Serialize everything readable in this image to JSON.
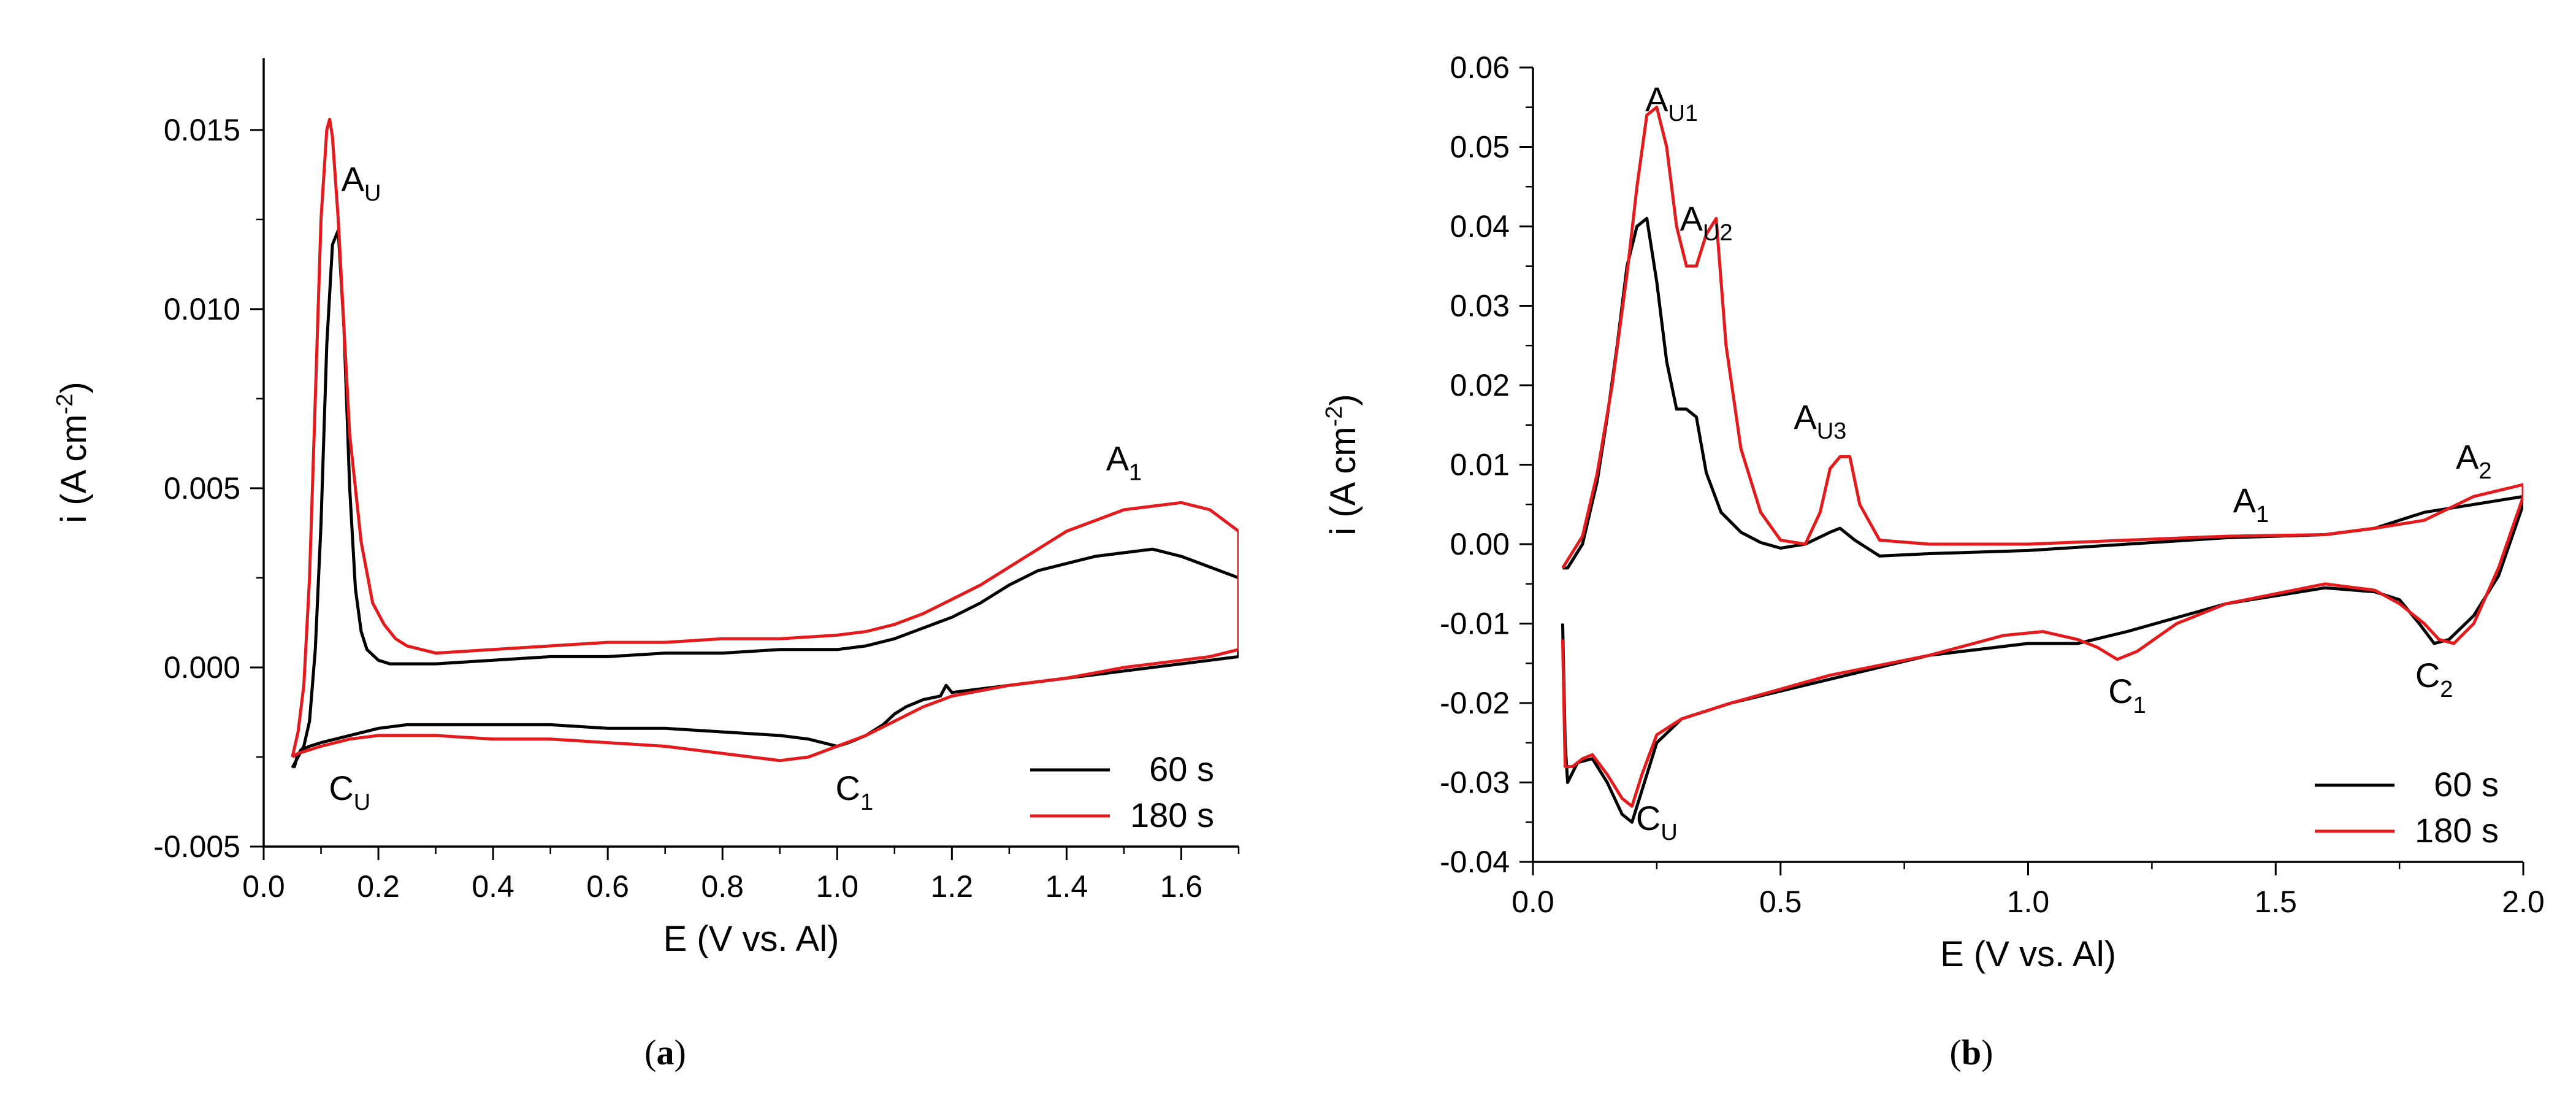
{
  "chart_data": [
    {
      "type": "line",
      "panel_label": "a",
      "title": "",
      "xlabel": "E (V vs. Al)",
      "ylabel": "i (A cm",
      "ylabel_sup": "-2",
      "ylabel_close": ")",
      "xlim": [
        0.0,
        1.7
      ],
      "ylim": [
        -0.005,
        0.017
      ],
      "x_ticks": [
        0.0,
        0.2,
        0.4,
        0.6,
        0.8,
        1.0,
        1.2,
        1.4,
        1.6
      ],
      "x_tick_labels": [
        "0.0",
        "0.2",
        "0.4",
        "0.6",
        "0.8",
        "1.0",
        "1.2",
        "1.4",
        "1.6"
      ],
      "y_ticks": [
        -0.005,
        0.0,
        0.005,
        0.01,
        0.015
      ],
      "y_tick_labels": [
        "-0.005",
        "0.000",
        "0.005",
        "0.010",
        "0.015"
      ],
      "legend": {
        "placement": "bottom-right",
        "entries": [
          "60 s",
          "180 s"
        ]
      },
      "annotations": [
        {
          "text": "A",
          "sub": "U",
          "x": 0.17,
          "y": 0.0133
        },
        {
          "text": "A",
          "sub": "1",
          "x": 1.5,
          "y": 0.0055
        },
        {
          "text": "C",
          "sub": "U",
          "x": 0.15,
          "y": -0.0037
        },
        {
          "text": "C",
          "sub": "1",
          "x": 1.03,
          "y": -0.0037
        }
      ],
      "series": [
        {
          "name": "60 s",
          "color": "#000000",
          "x": [
            0.05,
            0.06,
            0.07,
            0.08,
            0.09,
            0.1,
            0.11,
            0.12,
            0.13,
            0.14,
            0.15,
            0.16,
            0.17,
            0.18,
            0.2,
            0.22,
            0.25,
            0.3,
            0.4,
            0.5,
            0.6,
            0.7,
            0.8,
            0.9,
            1.0,
            1.05,
            1.1,
            1.15,
            1.2,
            1.25,
            1.3,
            1.35,
            1.4,
            1.45,
            1.5,
            1.55,
            1.6,
            1.65,
            1.7,
            1.7,
            1.65,
            1.6,
            1.5,
            1.4,
            1.3,
            1.25,
            1.2,
            1.19,
            1.18,
            1.15,
            1.12,
            1.1,
            1.08,
            1.05,
            1.02,
            1.0,
            0.95,
            0.9,
            0.8,
            0.7,
            0.6,
            0.5,
            0.4,
            0.3,
            0.25,
            0.2,
            0.15,
            0.1,
            0.08,
            0.065,
            0.058,
            0.055,
            0.053
          ],
          "y": [
            -0.0028,
            -0.0025,
            -0.0022,
            -0.0015,
            0.0005,
            0.004,
            0.009,
            0.0118,
            0.0122,
            0.0095,
            0.005,
            0.0022,
            0.001,
            0.0005,
            0.0002,
            0.0001,
            0.0001,
            0.0001,
            0.0002,
            0.0003,
            0.0003,
            0.0004,
            0.0004,
            0.0005,
            0.0005,
            0.0006,
            0.0008,
            0.0011,
            0.0014,
            0.0018,
            0.0023,
            0.0027,
            0.0029,
            0.0031,
            0.0032,
            0.0033,
            0.0031,
            0.0028,
            0.0025,
            0.0003,
            0.0002,
            0.0001,
            -0.0001,
            -0.0003,
            -0.0005,
            -0.0006,
            -0.0007,
            -0.0005,
            -0.0008,
            -0.0009,
            -0.0011,
            -0.0013,
            -0.0016,
            -0.0019,
            -0.0021,
            -0.0022,
            -0.002,
            -0.0019,
            -0.0018,
            -0.0017,
            -0.0017,
            -0.0016,
            -0.0016,
            -0.0016,
            -0.0016,
            -0.0017,
            -0.0019,
            -0.0021,
            -0.0022,
            -0.0023,
            -0.0025,
            -0.0027,
            -0.0028
          ]
        },
        {
          "name": "180 s",
          "color": "#e41a1c",
          "x": [
            0.05,
            0.06,
            0.07,
            0.08,
            0.09,
            0.1,
            0.11,
            0.115,
            0.12,
            0.13,
            0.14,
            0.15,
            0.17,
            0.19,
            0.21,
            0.23,
            0.25,
            0.3,
            0.4,
            0.5,
            0.6,
            0.7,
            0.8,
            0.9,
            1.0,
            1.05,
            1.1,
            1.15,
            1.2,
            1.25,
            1.3,
            1.35,
            1.4,
            1.45,
            1.5,
            1.55,
            1.6,
            1.65,
            1.7,
            1.7,
            1.65,
            1.6,
            1.5,
            1.4,
            1.3,
            1.2,
            1.15,
            1.1,
            1.05,
            1.0,
            0.95,
            0.9,
            0.8,
            0.7,
            0.6,
            0.5,
            0.4,
            0.3,
            0.2,
            0.15,
            0.1,
            0.08,
            0.06,
            0.05
          ],
          "y": [
            -0.0025,
            -0.0018,
            -0.0005,
            0.0025,
            0.0075,
            0.0125,
            0.015,
            0.0153,
            0.0148,
            0.0125,
            0.0095,
            0.0065,
            0.0035,
            0.0018,
            0.0012,
            0.0008,
            0.0006,
            0.0004,
            0.0005,
            0.0006,
            0.0007,
            0.0007,
            0.0008,
            0.0008,
            0.0009,
            0.001,
            0.0012,
            0.0015,
            0.0019,
            0.0023,
            0.0028,
            0.0033,
            0.0038,
            0.0041,
            0.0044,
            0.0045,
            0.0046,
            0.0044,
            0.0038,
            0.0005,
            0.0003,
            0.0002,
            0.0,
            -0.0003,
            -0.0005,
            -0.0008,
            -0.0011,
            -0.0015,
            -0.0019,
            -0.0022,
            -0.0025,
            -0.0026,
            -0.0024,
            -0.0022,
            -0.0021,
            -0.002,
            -0.002,
            -0.0019,
            -0.0019,
            -0.002,
            -0.0022,
            -0.0023,
            -0.0024,
            -0.0025
          ]
        }
      ]
    },
    {
      "type": "line",
      "panel_label": "b",
      "title": "",
      "xlabel": "E (V vs. Al)",
      "ylabel": "i (A cm",
      "ylabel_sup": "-2",
      "ylabel_close": ")",
      "xlim": [
        0.0,
        2.0
      ],
      "ylim": [
        -0.04,
        0.06
      ],
      "x_ticks": [
        0.0,
        0.5,
        1.0,
        1.5,
        2.0
      ],
      "x_tick_labels": [
        "0.0",
        "0.5",
        "1.0",
        "1.5",
        "2.0"
      ],
      "y_ticks": [
        -0.04,
        -0.03,
        -0.02,
        -0.01,
        0.0,
        0.01,
        0.02,
        0.03,
        0.04,
        0.05,
        0.06
      ],
      "y_tick_labels": [
        "-0.04",
        "-0.03",
        "-0.02",
        "-0.01",
        "0.00",
        "0.01",
        "0.02",
        "0.03",
        "0.04",
        "0.05",
        "0.06"
      ],
      "legend": {
        "placement": "bottom-right",
        "entries": [
          "60 s",
          "180 s"
        ]
      },
      "annotations": [
        {
          "text": "A",
          "sub": "U1",
          "x": 0.28,
          "y": 0.0545
        },
        {
          "text": "A",
          "sub": "U2",
          "x": 0.35,
          "y": 0.0395
        },
        {
          "text": "A",
          "sub": "U3",
          "x": 0.58,
          "y": 0.0145
        },
        {
          "text": "A",
          "sub": "1",
          "x": 1.45,
          "y": 0.004
        },
        {
          "text": "A",
          "sub": "2",
          "x": 1.9,
          "y": 0.0095
        },
        {
          "text": "C",
          "sub": "U",
          "x": 0.25,
          "y": -0.036
        },
        {
          "text": "C",
          "sub": "1",
          "x": 1.2,
          "y": -0.02
        },
        {
          "text": "C",
          "sub": "2",
          "x": 1.82,
          "y": -0.018
        }
      ],
      "series": [
        {
          "name": "60 s",
          "color": "#000000",
          "x": [
            0.06,
            0.07,
            0.1,
            0.13,
            0.15,
            0.17,
            0.19,
            0.21,
            0.23,
            0.25,
            0.27,
            0.29,
            0.31,
            0.33,
            0.35,
            0.38,
            0.42,
            0.46,
            0.5,
            0.55,
            0.6,
            0.62,
            0.65,
            0.7,
            0.8,
            1.0,
            1.2,
            1.4,
            1.6,
            1.7,
            1.75,
            1.8,
            1.9,
            2.0,
            2.0,
            1.95,
            1.9,
            1.85,
            1.82,
            1.79,
            1.75,
            1.7,
            1.6,
            1.4,
            1.2,
            1.1,
            1.0,
            0.8,
            0.6,
            0.4,
            0.3,
            0.25,
            0.22,
            0.2,
            0.18,
            0.15,
            0.12,
            0.09,
            0.07,
            0.065,
            0.06
          ],
          "y": [
            -0.003,
            -0.003,
            0.0,
            0.008,
            0.016,
            0.025,
            0.035,
            0.04,
            0.041,
            0.033,
            0.023,
            0.017,
            0.017,
            0.016,
            0.009,
            0.004,
            0.0015,
            0.0002,
            -0.0005,
            0.0,
            0.0015,
            0.002,
            0.0005,
            -0.0015,
            -0.0012,
            -0.0008,
            0.0,
            0.0008,
            0.0012,
            0.002,
            0.003,
            0.004,
            0.005,
            0.006,
            0.005,
            -0.004,
            -0.009,
            -0.012,
            -0.0125,
            -0.01,
            -0.007,
            -0.006,
            -0.0055,
            -0.0075,
            -0.011,
            -0.0125,
            -0.0125,
            -0.014,
            -0.017,
            -0.02,
            -0.022,
            -0.025,
            -0.031,
            -0.035,
            -0.034,
            -0.03,
            -0.027,
            -0.0275,
            -0.03,
            -0.025,
            -0.01
          ]
        },
        {
          "name": "180 s",
          "color": "#e41a1c",
          "x": [
            0.06,
            0.07,
            0.1,
            0.13,
            0.16,
            0.19,
            0.21,
            0.23,
            0.25,
            0.27,
            0.29,
            0.31,
            0.33,
            0.35,
            0.37,
            0.39,
            0.42,
            0.46,
            0.5,
            0.55,
            0.58,
            0.6,
            0.62,
            0.64,
            0.66,
            0.7,
            0.8,
            1.0,
            1.2,
            1.4,
            1.6,
            1.7,
            1.8,
            1.9,
            2.0,
            2.0,
            1.95,
            1.9,
            1.86,
            1.83,
            1.8,
            1.75,
            1.7,
            1.6,
            1.4,
            1.3,
            1.22,
            1.18,
            1.14,
            1.1,
            1.03,
            0.95,
            0.8,
            0.6,
            0.4,
            0.3,
            0.25,
            0.22,
            0.2,
            0.18,
            0.15,
            0.12,
            0.1,
            0.08,
            0.065,
            0.06
          ],
          "y": [
            -0.003,
            -0.002,
            0.001,
            0.009,
            0.02,
            0.034,
            0.045,
            0.054,
            0.055,
            0.05,
            0.04,
            0.035,
            0.035,
            0.039,
            0.041,
            0.025,
            0.012,
            0.004,
            0.0005,
            0.0,
            0.004,
            0.0095,
            0.011,
            0.011,
            0.005,
            0.0005,
            0.0,
            0.0,
            0.0005,
            0.001,
            0.0012,
            0.002,
            0.003,
            0.006,
            0.0075,
            0.006,
            -0.003,
            -0.01,
            -0.0125,
            -0.012,
            -0.01,
            -0.0075,
            -0.0058,
            -0.005,
            -0.0075,
            -0.01,
            -0.0135,
            -0.0145,
            -0.013,
            -0.012,
            -0.011,
            -0.0115,
            -0.014,
            -0.0165,
            -0.02,
            -0.022,
            -0.024,
            -0.029,
            -0.033,
            -0.032,
            -0.029,
            -0.0265,
            -0.027,
            -0.028,
            -0.028,
            -0.012
          ]
        }
      ]
    }
  ]
}
